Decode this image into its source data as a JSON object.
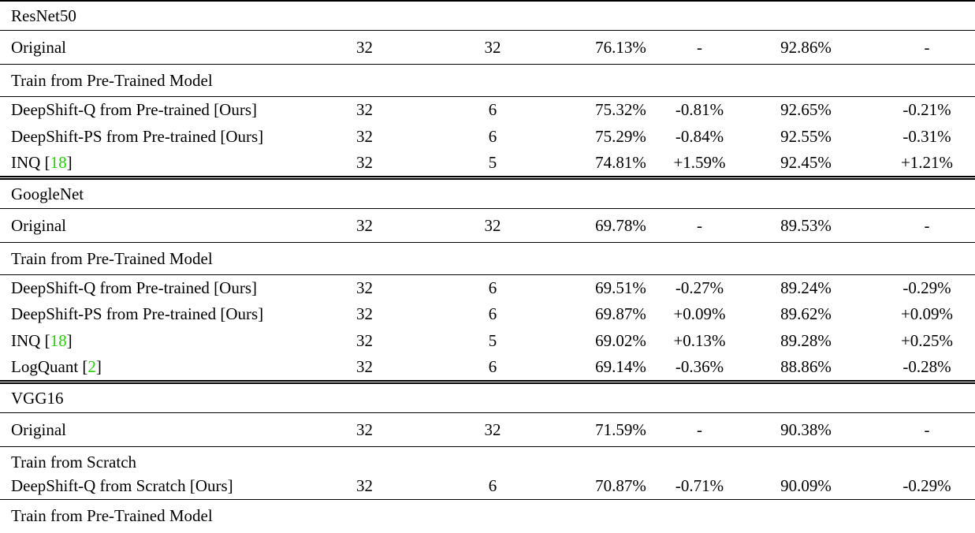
{
  "colors": {
    "citation_green": "#22d500",
    "rule": "#000000",
    "text": "#000000",
    "background": "#ffffff"
  },
  "table": {
    "rows": [
      {
        "kind": "section",
        "label": "ResNet50",
        "rule_below": "single"
      },
      {
        "kind": "data",
        "tall": true,
        "method": "Original",
        "cells": [
          "32",
          "32",
          "76.13%",
          "-",
          "92.86%",
          "-"
        ],
        "rule_below": "single"
      },
      {
        "kind": "group",
        "label": "Train from Pre-Trained Model",
        "rule_below": "single"
      },
      {
        "kind": "data",
        "method": "DeepShift-Q from Pre-trained [Ours]",
        "cells": [
          "32",
          "6",
          "75.32%",
          "-0.81%",
          "92.65%",
          "-0.21%"
        ],
        "rule_below": "none"
      },
      {
        "kind": "data",
        "method": "DeepShift-PS from Pre-trained [Ours]",
        "cells": [
          "32",
          "6",
          "75.29%",
          "-0.84%",
          "92.55%",
          "-0.31%"
        ],
        "rule_below": "none"
      },
      {
        "kind": "data",
        "method": "INQ",
        "cite": "18",
        "cells": [
          "32",
          "5",
          "74.81%",
          "+1.59%",
          "92.45%",
          "+1.21%"
        ],
        "rule_below": "double"
      },
      {
        "kind": "section",
        "label": "GoogleNet",
        "rule_below": "single"
      },
      {
        "kind": "data",
        "tall": true,
        "method": "Original",
        "cells": [
          "32",
          "32",
          "69.78%",
          "-",
          "89.53%",
          "-"
        ],
        "rule_below": "single"
      },
      {
        "kind": "group",
        "label": "Train from Pre-Trained Model",
        "rule_below": "single"
      },
      {
        "kind": "data",
        "method": "DeepShift-Q from Pre-trained [Ours]",
        "cells": [
          "32",
          "6",
          "69.51%",
          "-0.27%",
          "89.24%",
          "-0.29%"
        ],
        "rule_below": "none"
      },
      {
        "kind": "data",
        "method": "DeepShift-PS from Pre-trained [Ours]",
        "cells": [
          "32",
          "6",
          "69.87%",
          "+0.09%",
          "89.62%",
          "+0.09%"
        ],
        "rule_below": "none"
      },
      {
        "kind": "data",
        "method": "INQ",
        "cite": "18",
        "cells": [
          "32",
          "5",
          "69.02%",
          "+0.13%",
          "89.28%",
          "+0.25%"
        ],
        "rule_below": "none"
      },
      {
        "kind": "data",
        "method": "LogQuant",
        "cite": "2",
        "cells": [
          "32",
          "6",
          "69.14%",
          "-0.36%",
          "88.86%",
          "-0.28%"
        ],
        "rule_below": "double"
      },
      {
        "kind": "section",
        "label": "VGG16",
        "rule_below": "single"
      },
      {
        "kind": "data",
        "tall": true,
        "method": "Original",
        "cells": [
          "32",
          "32",
          "71.59%",
          "-",
          "90.38%",
          "-"
        ],
        "rule_below": "single"
      },
      {
        "kind": "group",
        "compact": true,
        "label": "Train from Scratch",
        "rule_below": "none"
      },
      {
        "kind": "data",
        "method": "DeepShift-Q from Scratch [Ours]",
        "cells": [
          "32",
          "6",
          "70.87%",
          "-0.71%",
          "90.09%",
          "-0.29%"
        ],
        "rule_below": "single"
      },
      {
        "kind": "group",
        "label": "Train from Pre-Trained Model",
        "rule_below": "none"
      }
    ]
  }
}
